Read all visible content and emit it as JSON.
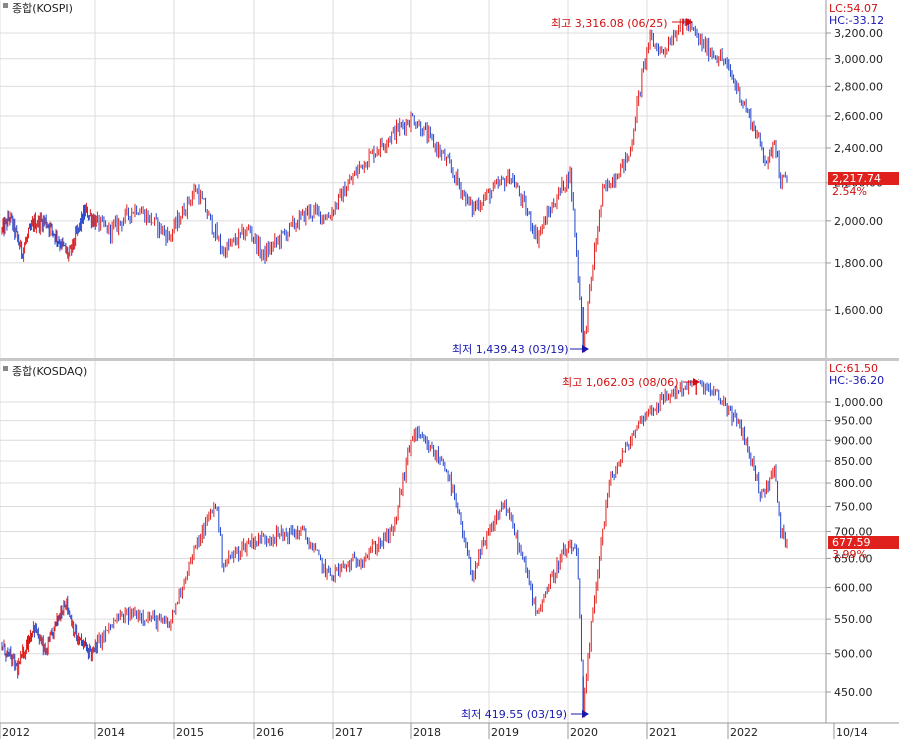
{
  "colors": {
    "up": "#e0201c",
    "down": "#2244cc",
    "grid": "#dcdcdc",
    "axis_bg": "#ffffff",
    "last_badge": "#e0201c",
    "high_text": "#d01010",
    "low_text": "#1818b0"
  },
  "x_axis": {
    "labels": [
      "2012",
      "2014",
      "2015",
      "2016",
      "2017",
      "2018",
      "2019",
      "2020",
      "2021",
      "2022",
      "10/14"
    ]
  },
  "chart_data": [
    {
      "type": "candlestick",
      "title": "종합(KOSPI)",
      "lc_label": "LC:54.07",
      "hc_label": "HC:-33.12",
      "last_value_label": "2,217.74",
      "change_label": "2.54%",
      "high_annotation": "최고 3,316.08 (06/25)",
      "low_annotation": "최저 1,439.43 (03/19)",
      "y_ticks": [
        "3,200.00",
        "3,000.00",
        "2,800.00",
        "2,600.00",
        "2,400.00",
        "2,200.00",
        "2,000.00",
        "1,800.00",
        "1,600.00"
      ],
      "y_tick_values": [
        3200,
        3000,
        2800,
        2600,
        2400,
        2200,
        2000,
        1800,
        1600
      ],
      "y_scale": "log",
      "ylim": [
        1439.43,
        3316.08
      ],
      "high": 3316.08,
      "low": 1439.43,
      "last": 2217.74,
      "series": [
        {
          "x": "2012-01",
          "value": 1950
        },
        {
          "x": "2012-03",
          "value": 2020
        },
        {
          "x": "2012-06",
          "value": 1850
        },
        {
          "x": "2012-09",
          "value": 1990
        },
        {
          "x": "2012-12",
          "value": 2000
        },
        {
          "x": "2013-06",
          "value": 1830
        },
        {
          "x": "2013-10",
          "value": 2050
        },
        {
          "x": "2014-03",
          "value": 1950
        },
        {
          "x": "2014-07",
          "value": 2070
        },
        {
          "x": "2014-12",
          "value": 1920
        },
        {
          "x": "2015-04",
          "value": 2170
        },
        {
          "x": "2015-08",
          "value": 1850
        },
        {
          "x": "2015-12",
          "value": 1960
        },
        {
          "x": "2016-02",
          "value": 1830
        },
        {
          "x": "2016-09",
          "value": 2050
        },
        {
          "x": "2016-12",
          "value": 2020
        },
        {
          "x": "2017-05",
          "value": 2300
        },
        {
          "x": "2017-11",
          "value": 2530
        },
        {
          "x": "2018-01",
          "value": 2590
        },
        {
          "x": "2018-06",
          "value": 2330
        },
        {
          "x": "2018-10",
          "value": 2060
        },
        {
          "x": "2019-04",
          "value": 2240
        },
        {
          "x": "2019-08",
          "value": 1920
        },
        {
          "x": "2019-12",
          "value": 2190
        },
        {
          "x": "2020-01",
          "value": 2250
        },
        {
          "x": "2020-03",
          "value": 1439.43
        },
        {
          "x": "2020-06",
          "value": 2150
        },
        {
          "x": "2020-10",
          "value": 2350
        },
        {
          "x": "2021-01",
          "value": 3150
        },
        {
          "x": "2021-03",
          "value": 3050
        },
        {
          "x": "2021-06",
          "value": 3316.08
        },
        {
          "x": "2021-09",
          "value": 3100
        },
        {
          "x": "2021-12",
          "value": 2990
        },
        {
          "x": "2022-03",
          "value": 2700
        },
        {
          "x": "2022-06",
          "value": 2400
        },
        {
          "x": "2022-07",
          "value": 2300
        },
        {
          "x": "2022-08",
          "value": 2480
        },
        {
          "x": "2022-09",
          "value": 2200
        },
        {
          "x": "2022-10",
          "value": 2217.74
        }
      ]
    },
    {
      "type": "candlestick",
      "title": "종합(KOSDAQ)",
      "lc_label": "LC:61.50",
      "hc_label": "HC:-36.20",
      "last_value_label": "677.59",
      "change_label": "3.99%",
      "high_annotation": "최고 1,062.03 (08/06)",
      "low_annotation": "최저 419.55 (03/19)",
      "y_ticks": [
        "1,000.00",
        "950.00",
        "900.00",
        "850.00",
        "800.00",
        "750.00",
        "700.00",
        "650.00",
        "600.00",
        "550.00",
        "500.00",
        "450.00"
      ],
      "y_tick_values": [
        1000,
        950,
        900,
        850,
        800,
        750,
        700,
        650,
        600,
        550,
        500,
        450
      ],
      "y_scale": "log",
      "ylim": [
        419.55,
        1062.03
      ],
      "high": 1062.03,
      "low": 419.55,
      "last": 677.59,
      "series": [
        {
          "x": "2012-01",
          "value": 510
        },
        {
          "x": "2012-05",
          "value": 480
        },
        {
          "x": "2012-09",
          "value": 540
        },
        {
          "x": "2012-12",
          "value": 500
        },
        {
          "x": "2013-05",
          "value": 580
        },
        {
          "x": "2013-08",
          "value": 520
        },
        {
          "x": "2013-12",
          "value": 500
        },
        {
          "x": "2014-04",
          "value": 550
        },
        {
          "x": "2014-07",
          "value": 560
        },
        {
          "x": "2014-12",
          "value": 540
        },
        {
          "x": "2015-03",
          "value": 640
        },
        {
          "x": "2015-07",
          "value": 760
        },
        {
          "x": "2015-08",
          "value": 640
        },
        {
          "x": "2015-12",
          "value": 680
        },
        {
          "x": "2016-03",
          "value": 690
        },
        {
          "x": "2016-08",
          "value": 700
        },
        {
          "x": "2016-12",
          "value": 620
        },
        {
          "x": "2017-05",
          "value": 650
        },
        {
          "x": "2017-10",
          "value": 700
        },
        {
          "x": "2018-01",
          "value": 920
        },
        {
          "x": "2018-06",
          "value": 840
        },
        {
          "x": "2018-10",
          "value": 620
        },
        {
          "x": "2019-03",
          "value": 760
        },
        {
          "x": "2019-08",
          "value": 560
        },
        {
          "x": "2019-12",
          "value": 660
        },
        {
          "x": "2020-02",
          "value": 670
        },
        {
          "x": "2020-03",
          "value": 419.55
        },
        {
          "x": "2020-07",
          "value": 800
        },
        {
          "x": "2020-12",
          "value": 960
        },
        {
          "x": "2021-04",
          "value": 1020
        },
        {
          "x": "2021-08",
          "value": 1062.03
        },
        {
          "x": "2021-12",
          "value": 1000
        },
        {
          "x": "2022-03",
          "value": 920
        },
        {
          "x": "2022-06",
          "value": 770
        },
        {
          "x": "2022-08",
          "value": 830
        },
        {
          "x": "2022-09",
          "value": 700
        },
        {
          "x": "2022-10",
          "value": 677.59
        }
      ]
    }
  ]
}
